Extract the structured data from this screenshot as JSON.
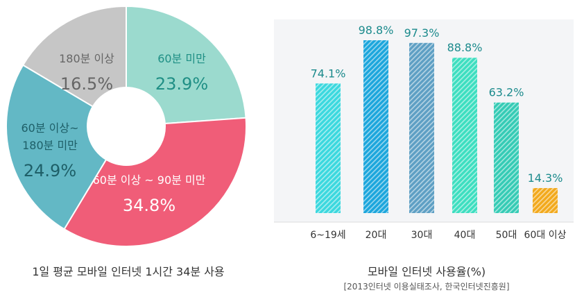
{
  "chart_data": [
    {
      "type": "pie",
      "variant": "donut",
      "title": "1일 평균 모바일 인터넷 1시간 34분 사용",
      "slices": [
        {
          "lines": [
            "60분 미만"
          ],
          "value": 23.9,
          "value_label": "23.9%",
          "color": "#9bdace",
          "text_color": "#1f8f85"
        },
        {
          "lines": [
            "60분 이상 ~ 90분 미만"
          ],
          "value": 34.8,
          "value_label": "34.8%",
          "color": "#f05d78",
          "text_color": "#ffffff"
        },
        {
          "lines": [
            "60분 이상~",
            "180분 미만"
          ],
          "value": 24.9,
          "value_label": "24.9%",
          "color": "#63b8c5",
          "text_color": "#1e5f68"
        },
        {
          "lines": [
            "180분 이상"
          ],
          "value": 16.5,
          "value_label": "16.5%",
          "color": "#c6c6c6",
          "text_color": "#666666"
        }
      ]
    },
    {
      "type": "bar",
      "title": "모바일 인터넷 사용율(%)",
      "source": "[2013인터넷 이용실태조사, 한국인터넷진흥원]",
      "categories": [
        "6~19세",
        "20대",
        "30대",
        "40대",
        "50대",
        "60대 이상"
      ],
      "values": [
        74.1,
        98.8,
        97.3,
        88.8,
        63.2,
        14.3
      ],
      "value_labels": [
        "74.1%",
        "98.8%",
        "97.3%",
        "88.8%",
        "63.2%",
        "14.3%"
      ],
      "colors": [
        "#3bd8de",
        "#1ca6dc",
        "#5e9fc4",
        "#3ddec0",
        "#35cbb5",
        "#f2a91c"
      ],
      "label_color": "#1b8a8c",
      "ylim": [
        0,
        100
      ],
      "grid": false
    }
  ]
}
